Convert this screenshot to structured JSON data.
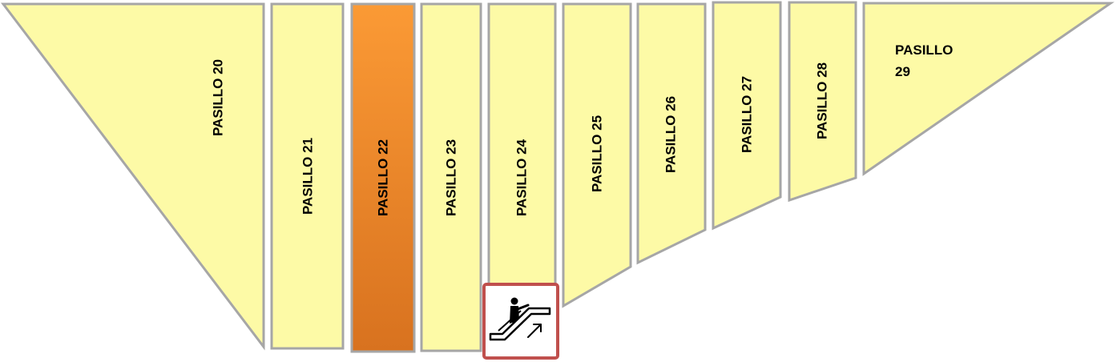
{
  "map": {
    "aisles": [
      {
        "id": "20",
        "label": "PASILLO 20",
        "selected": false
      },
      {
        "id": "21",
        "label": "PASILLO 21",
        "selected": false
      },
      {
        "id": "22",
        "label": "PASILLO 22",
        "selected": true
      },
      {
        "id": "23",
        "label": "PASILLO 23",
        "selected": false
      },
      {
        "id": "24",
        "label": "PASILLO 24",
        "selected": false
      },
      {
        "id": "25",
        "label": "PASILLO 25",
        "selected": false
      },
      {
        "id": "26",
        "label": "PASILLO 26",
        "selected": false
      },
      {
        "id": "27",
        "label": "PASILLO 27",
        "selected": false
      },
      {
        "id": "28",
        "label": "PASILLO 28",
        "selected": false
      },
      {
        "id": "29",
        "label_line1": "PASILLO",
        "label_line2": "29",
        "selected": false
      }
    ],
    "escalator_icon": "escalator-up-icon",
    "colors": {
      "aisle_fill": "#fdfaa6",
      "aisle_stroke": "#a6a6a6",
      "selected_fill_top": "#fb9a35",
      "selected_fill_bottom": "#d8721f",
      "escalator_border": "#c0504d"
    }
  }
}
